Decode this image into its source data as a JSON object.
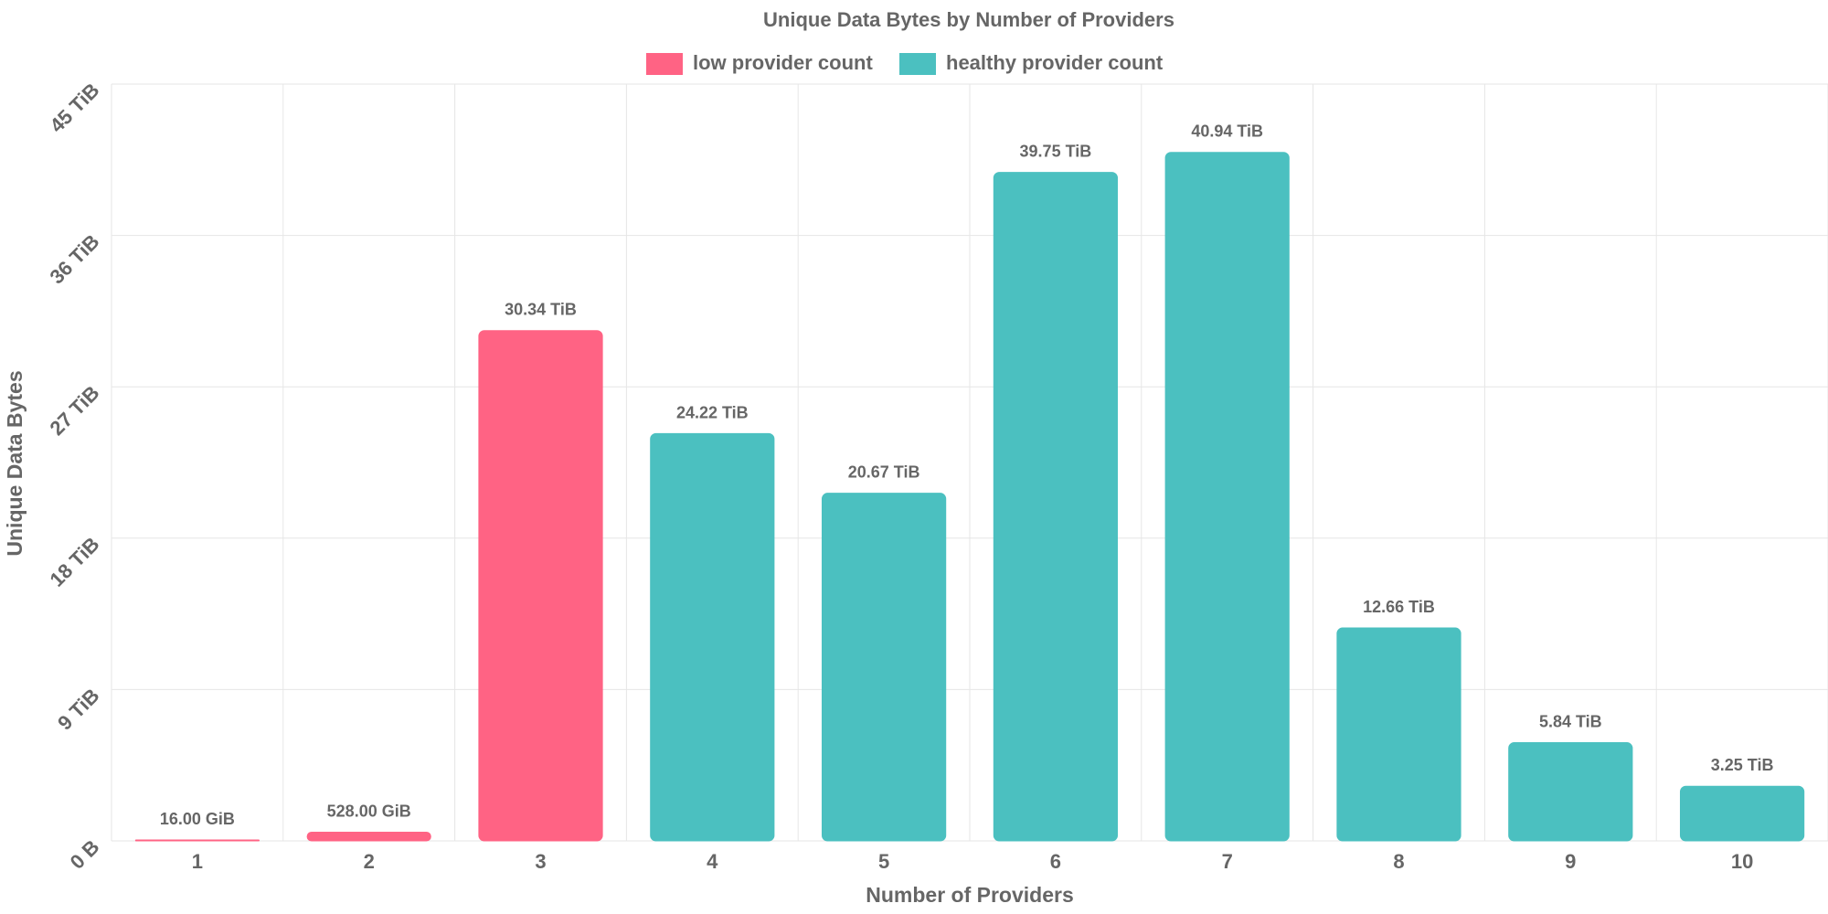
{
  "chart_data": {
    "type": "bar",
    "title": "Unique Data Bytes by Number of Providers",
    "xlabel": "Number of Providers",
    "ylabel": "Unique Data Bytes",
    "categories": [
      "1",
      "2",
      "3",
      "4",
      "5",
      "6",
      "7",
      "8",
      "9",
      "10"
    ],
    "values_tib": [
      0.015625,
      0.515625,
      30.34,
      24.22,
      20.67,
      39.75,
      40.94,
      12.66,
      5.84,
      3.25
    ],
    "value_labels": [
      "16.00 GiB",
      "528.00 GiB",
      "30.34 TiB",
      "24.22 TiB",
      "20.67 TiB",
      "39.75 TiB",
      "40.94 TiB",
      "12.66 TiB",
      "5.84 TiB",
      "3.25 TiB"
    ],
    "series_membership": [
      "low",
      "low",
      "low",
      "healthy",
      "healthy",
      "healthy",
      "healthy",
      "healthy",
      "healthy",
      "healthy"
    ],
    "legend": [
      {
        "key": "low",
        "label": "low provider count",
        "color": "#ff6384"
      },
      {
        "key": "healthy",
        "label": "healthy provider count",
        "color": "#4bc0c0"
      }
    ],
    "legend_position": "top",
    "ylim": [
      0,
      45
    ],
    "y_ticks": [
      0,
      9,
      18,
      27,
      36,
      45
    ],
    "y_tick_labels": [
      "0 B",
      "9 TiB",
      "18 TiB",
      "27 TiB",
      "36 TiB",
      "45 TiB"
    ],
    "grid": true
  }
}
